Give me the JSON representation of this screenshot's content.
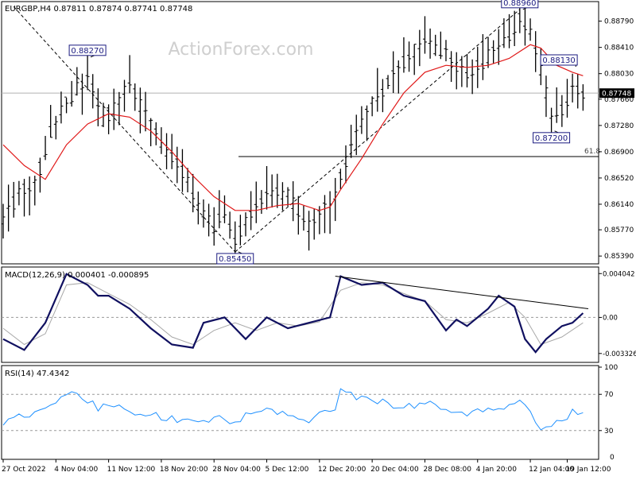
{
  "chart_data": [
    {
      "type": "candlestick",
      "header": "EURGBP,H4  0.87811 0.87874 0.87741 0.87748",
      "watermark": "ActionForex.com",
      "ylim": [
        0.853,
        0.8905
      ],
      "y_ticks": [
        "0.88790",
        "0.88410",
        "0.88030",
        "0.87660",
        "0.87280",
        "0.86900",
        "0.86520",
        "0.86140",
        "0.85770",
        "0.85390"
      ],
      "x_ticks": [
        "27 Oct 2022",
        "4 Nov 04:00",
        "11 Nov 12:00",
        "18 Nov 20:00",
        "28 Nov 04:00",
        "5 Dec 12:00",
        "12 Dec 20:00",
        "20 Dec 04:00",
        "28 Dec 08:00",
        "4 Jan 20:00",
        "12 Jan 04:00",
        "19 Jan 12:00"
      ],
      "current_price": "0.87748",
      "current_price_value": 0.87748,
      "fib_label": "61.8",
      "fib_level": 0.8683,
      "annotations": [
        {
          "text": "0.88270",
          "bar": 16,
          "value": 0.8827
        },
        {
          "text": "0.85450",
          "bar": 44,
          "value": 0.8545
        },
        {
          "text": "0.88960",
          "bar": 98,
          "value": 0.8896
        },
        {
          "text": "0.88130",
          "bar": 108,
          "value": 0.8813
        },
        {
          "text": "0.87200",
          "bar": 104,
          "value": 0.872
        }
      ],
      "price_path": [
        [
          0,
          0.859
        ],
        [
          3,
          0.863
        ],
        [
          6,
          0.864
        ],
        [
          9,
          0.872
        ],
        [
          12,
          0.876
        ],
        [
          16,
          0.88
        ],
        [
          19,
          0.8735
        ],
        [
          22,
          0.876
        ],
        [
          24,
          0.879
        ],
        [
          27,
          0.874
        ],
        [
          30,
          0.87
        ],
        [
          34,
          0.866
        ],
        [
          37,
          0.861
        ],
        [
          40,
          0.858
        ],
        [
          42,
          0.86
        ],
        [
          44,
          0.856
        ],
        [
          47,
          0.8605
        ],
        [
          50,
          0.8635
        ],
        [
          54,
          0.863
        ],
        [
          58,
          0.858
        ],
        [
          61,
          0.861
        ],
        [
          63,
          0.8625
        ],
        [
          66,
          0.87
        ],
        [
          70,
          0.876
        ],
        [
          74,
          0.88
        ],
        [
          77,
          0.883
        ],
        [
          80,
          0.885
        ],
        [
          84,
          0.883
        ],
        [
          88,
          0.88
        ],
        [
          91,
          0.882
        ],
        [
          95,
          0.885
        ],
        [
          98,
          0.888
        ],
        [
          100,
          0.886
        ],
        [
          102,
          0.881
        ],
        [
          104,
          0.874
        ],
        [
          106,
          0.875
        ],
        [
          108,
          0.878
        ],
        [
          110,
          0.8775
        ]
      ],
      "sma_path": [
        [
          0,
          0.87
        ],
        [
          4,
          0.867
        ],
        [
          8,
          0.865
        ],
        [
          12,
          0.87
        ],
        [
          16,
          0.873
        ],
        [
          20,
          0.8745
        ],
        [
          24,
          0.874
        ],
        [
          28,
          0.872
        ],
        [
          32,
          0.869
        ],
        [
          36,
          0.8655
        ],
        [
          40,
          0.8625
        ],
        [
          44,
          0.8605
        ],
        [
          48,
          0.8605
        ],
        [
          52,
          0.8612
        ],
        [
          56,
          0.8615
        ],
        [
          60,
          0.8605
        ],
        [
          62,
          0.861
        ],
        [
          64,
          0.8635
        ],
        [
          68,
          0.868
        ],
        [
          72,
          0.873
        ],
        [
          76,
          0.8775
        ],
        [
          80,
          0.8805
        ],
        [
          84,
          0.8815
        ],
        [
          88,
          0.8812
        ],
        [
          92,
          0.8815
        ],
        [
          96,
          0.8825
        ],
        [
          100,
          0.8845
        ],
        [
          102,
          0.884
        ],
        [
          105,
          0.8815
        ],
        [
          108,
          0.8805
        ],
        [
          110,
          0.88
        ]
      ]
    },
    {
      "type": "line",
      "label": "MACD(12,26,9) 0.000401 -0.000895",
      "ylim": [
        -0.004,
        0.0045
      ],
      "y_ticks": [
        "0.004042",
        "0.00",
        "-0.003326"
      ],
      "macd_path": [
        [
          0,
          -0.002
        ],
        [
          4,
          -0.003
        ],
        [
          8,
          -0.0005
        ],
        [
          12,
          0.004
        ],
        [
          16,
          0.003
        ],
        [
          18,
          0.002
        ],
        [
          20,
          0.002
        ],
        [
          24,
          0.0008
        ],
        [
          28,
          -0.001
        ],
        [
          32,
          -0.0025
        ],
        [
          36,
          -0.0028
        ],
        [
          38,
          -0.0005
        ],
        [
          42,
          0.0
        ],
        [
          46,
          -0.002
        ],
        [
          50,
          0.0
        ],
        [
          54,
          -0.001
        ],
        [
          58,
          -0.0005
        ],
        [
          62,
          0.0
        ],
        [
          64,
          0.0038
        ],
        [
          68,
          0.003
        ],
        [
          72,
          0.0032
        ],
        [
          76,
          0.002
        ],
        [
          80,
          0.0015
        ],
        [
          84,
          -0.0012
        ],
        [
          86,
          -0.0002
        ],
        [
          88,
          -0.0008
        ],
        [
          92,
          0.0008
        ],
        [
          94,
          0.002
        ],
        [
          97,
          0.001
        ],
        [
          99,
          -0.002
        ],
        [
          101,
          -0.0032
        ],
        [
          103,
          -0.002
        ],
        [
          106,
          -0.0008
        ],
        [
          108,
          -0.0005
        ],
        [
          110,
          0.0004
        ]
      ],
      "signal_path": [
        [
          0,
          -0.001
        ],
        [
          4,
          -0.0025
        ],
        [
          8,
          -0.0015
        ],
        [
          12,
          0.003
        ],
        [
          16,
          0.0032
        ],
        [
          20,
          0.0022
        ],
        [
          24,
          0.0012
        ],
        [
          28,
          -0.0002
        ],
        [
          32,
          -0.0018
        ],
        [
          36,
          -0.0025
        ],
        [
          40,
          -0.0012
        ],
        [
          44,
          -0.0005
        ],
        [
          48,
          -0.0012
        ],
        [
          52,
          -0.0005
        ],
        [
          56,
          -0.0008
        ],
        [
          60,
          -0.0004
        ],
        [
          64,
          0.0025
        ],
        [
          68,
          0.0032
        ],
        [
          72,
          0.003
        ],
        [
          76,
          0.0022
        ],
        [
          80,
          0.0015
        ],
        [
          84,
          -0.0002
        ],
        [
          88,
          -0.0005
        ],
        [
          92,
          0.0004
        ],
        [
          96,
          0.0014
        ],
        [
          99,
          0.0
        ],
        [
          102,
          -0.0025
        ],
        [
          106,
          -0.0018
        ],
        [
          110,
          -0.0005
        ]
      ],
      "trendline": [
        [
          63,
          0.0038
        ],
        [
          111,
          0.0008
        ]
      ]
    },
    {
      "type": "line",
      "label": "RSI(14) 47.4342",
      "ylim": [
        0,
        100
      ],
      "y_ticks": [
        "100",
        "70",
        "30",
        "0"
      ],
      "y_tick_values": [
        100,
        70,
        30,
        0
      ],
      "levels": [
        70,
        30
      ],
      "rsi_path": [
        [
          0,
          38
        ],
        [
          3,
          46
        ],
        [
          6,
          50
        ],
        [
          9,
          60
        ],
        [
          12,
          72
        ],
        [
          15,
          68
        ],
        [
          18,
          55
        ],
        [
          21,
          60
        ],
        [
          24,
          48
        ],
        [
          27,
          50
        ],
        [
          30,
          45
        ],
        [
          34,
          40
        ],
        [
          38,
          38
        ],
        [
          41,
          50
        ],
        [
          44,
          37
        ],
        [
          47,
          52
        ],
        [
          50,
          53
        ],
        [
          54,
          48
        ],
        [
          58,
          40
        ],
        [
          61,
          50
        ],
        [
          63,
          55
        ],
        [
          64,
          75
        ],
        [
          67,
          68
        ],
        [
          70,
          65
        ],
        [
          73,
          60
        ],
        [
          76,
          55
        ],
        [
          80,
          62
        ],
        [
          84,
          55
        ],
        [
          88,
          50
        ],
        [
          92,
          52
        ],
        [
          96,
          58
        ],
        [
          98,
          60
        ],
        [
          100,
          52
        ],
        [
          102,
          30
        ],
        [
          104,
          35
        ],
        [
          106,
          40
        ],
        [
          108,
          50
        ],
        [
          110,
          47
        ]
      ]
    }
  ]
}
